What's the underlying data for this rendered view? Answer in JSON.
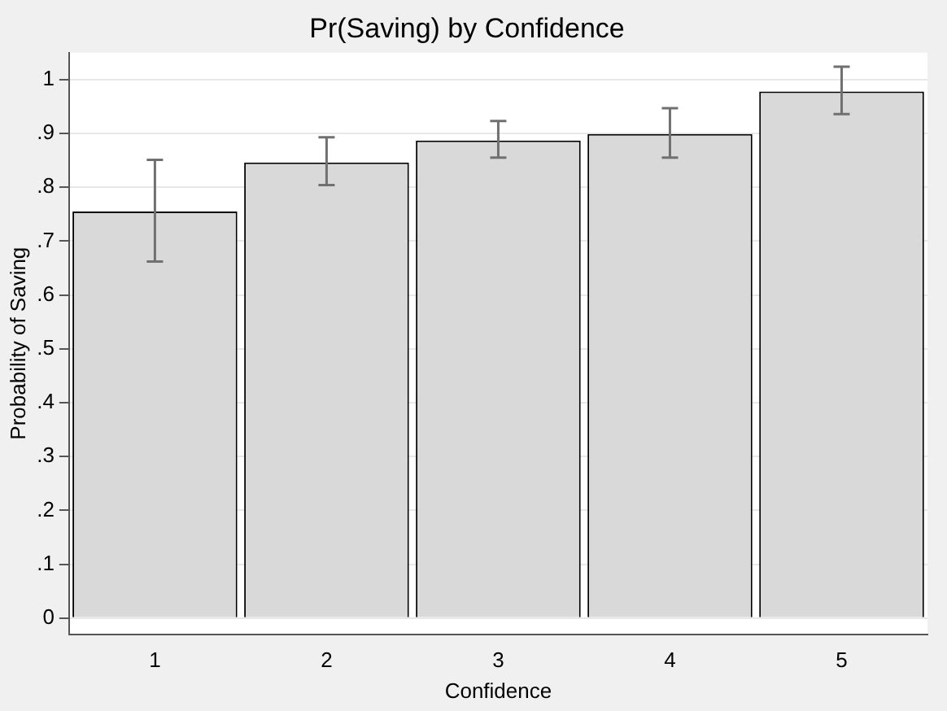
{
  "chart_data": {
    "type": "bar",
    "title": "Pr(Saving) by Confidence",
    "xlabel": "Confidence",
    "ylabel": "Probability of Saving",
    "categories": [
      "1",
      "2",
      "3",
      "4",
      "5"
    ],
    "values": [
      0.755,
      0.846,
      0.887,
      0.899,
      0.978
    ],
    "errors": [
      [
        0.662,
        0.851
      ],
      [
        0.804,
        0.893
      ],
      [
        0.855,
        0.923
      ],
      [
        0.855,
        0.947
      ],
      [
        0.936,
        1.024
      ]
    ],
    "color": "#d9d9d9",
    "ylim": [
      -0.03,
      1.05
    ],
    "yticks": [
      0,
      {
        "value": 0.1,
        "label": ".1"
      },
      {
        "value": 0.2,
        "label": ".2"
      },
      {
        "value": 0.3,
        "label": ".3"
      },
      {
        "value": 0.4,
        "label": ".4"
      },
      {
        "value": 0.5,
        "label": ".5"
      },
      {
        "value": 0.6,
        "label": ".6"
      },
      {
        "value": 0.7,
        "label": ".7"
      },
      {
        "value": 0.8,
        "label": ".8"
      },
      {
        "value": 0.9,
        "label": ".9"
      },
      1
    ],
    "grid": "y"
  }
}
